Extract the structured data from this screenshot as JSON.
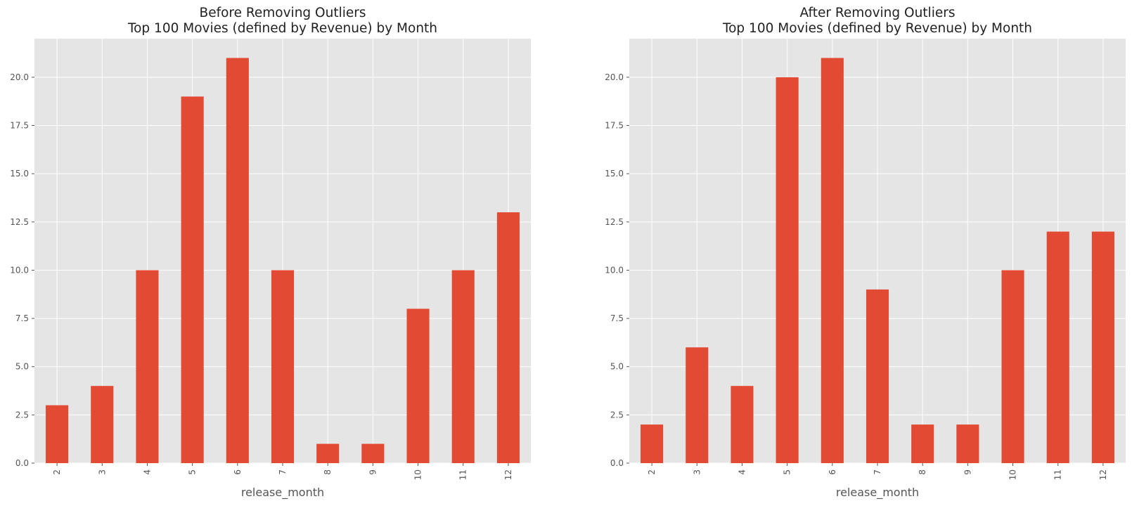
{
  "chart_data": [
    {
      "type": "bar",
      "title_line1": "Before Removing Outliers",
      "title_line2": "Top 100 Movies (defined by Revenue) by Month",
      "xlabel": "release_month",
      "ylabel": "",
      "categories": [
        "2",
        "3",
        "4",
        "5",
        "6",
        "7",
        "8",
        "9",
        "10",
        "11",
        "12"
      ],
      "values": [
        3,
        4,
        10,
        19,
        21,
        10,
        1,
        1,
        8,
        10,
        13
      ],
      "ylim": [
        0,
        22
      ],
      "yticks": [
        "0.0",
        "2.5",
        "5.0",
        "7.5",
        "10.0",
        "12.5",
        "15.0",
        "17.5",
        "20.0"
      ],
      "grid": true,
      "bar_color": "#e24a33",
      "background_color": "#e5e5e5"
    },
    {
      "type": "bar",
      "title_line1": "After Removing Outliers",
      "title_line2": "Top 100 Movies (defined by Revenue) by Month",
      "xlabel": "release_month",
      "ylabel": "",
      "categories": [
        "2",
        "3",
        "4",
        "5",
        "6",
        "7",
        "8",
        "9",
        "10",
        "11",
        "12"
      ],
      "values": [
        2,
        6,
        4,
        20,
        21,
        9,
        2,
        2,
        10,
        12,
        12
      ],
      "ylim": [
        0,
        22
      ],
      "yticks": [
        "0.0",
        "2.5",
        "5.0",
        "7.5",
        "10.0",
        "12.5",
        "15.0",
        "17.5",
        "20.0"
      ],
      "grid": true,
      "bar_color": "#e24a33",
      "background_color": "#e5e5e5"
    }
  ]
}
